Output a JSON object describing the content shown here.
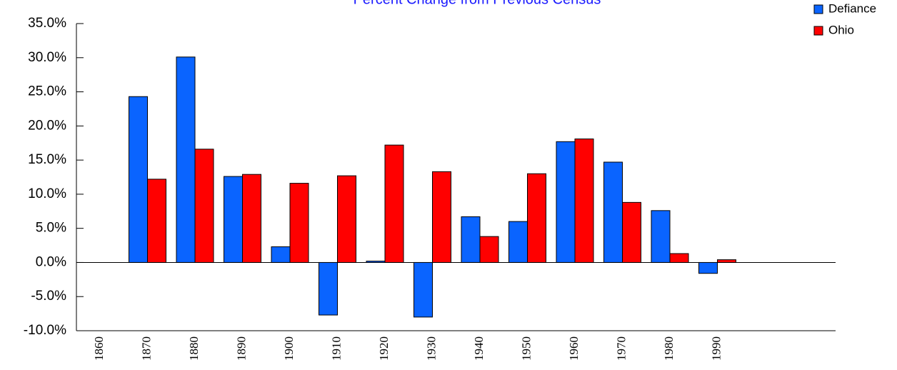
{
  "chart_data": {
    "type": "bar",
    "title": "Percent Change from Previous Census",
    "categories": [
      "1860",
      "1870",
      "1880",
      "1890",
      "1900",
      "1910",
      "1920",
      "1930",
      "1940",
      "1950",
      "1960",
      "1970",
      "1980",
      "1990"
    ],
    "series": [
      {
        "name": "Defiance",
        "color": "#0a64ff",
        "values": [
          null,
          24.3,
          30.1,
          12.6,
          2.3,
          -7.7,
          0.2,
          -8.0,
          6.7,
          6.0,
          17.7,
          14.7,
          7.6,
          -1.6
        ]
      },
      {
        "name": "Ohio",
        "color": "#ff0000",
        "values": [
          null,
          12.2,
          16.6,
          12.9,
          11.6,
          12.7,
          17.2,
          13.3,
          3.8,
          13.0,
          18.1,
          8.8,
          1.3,
          0.4
        ]
      }
    ],
    "ylim": [
      -10,
      35
    ],
    "yticks": [
      {
        "value": -10,
        "label": "-10.0%"
      },
      {
        "value": -5,
        "label": "-5.0%"
      },
      {
        "value": 0,
        "label": "0.0%"
      },
      {
        "value": 5,
        "label": "5.0%"
      },
      {
        "value": 10,
        "label": "10.0%"
      },
      {
        "value": 15,
        "label": "15.0%"
      },
      {
        "value": 20,
        "label": "20.0%"
      },
      {
        "value": 25,
        "label": "25.0%"
      },
      {
        "value": 30,
        "label": "30.0%"
      },
      {
        "value": 35,
        "label": "35.0%"
      }
    ],
    "legend": "top-right",
    "title_color": "#1a1aff"
  }
}
